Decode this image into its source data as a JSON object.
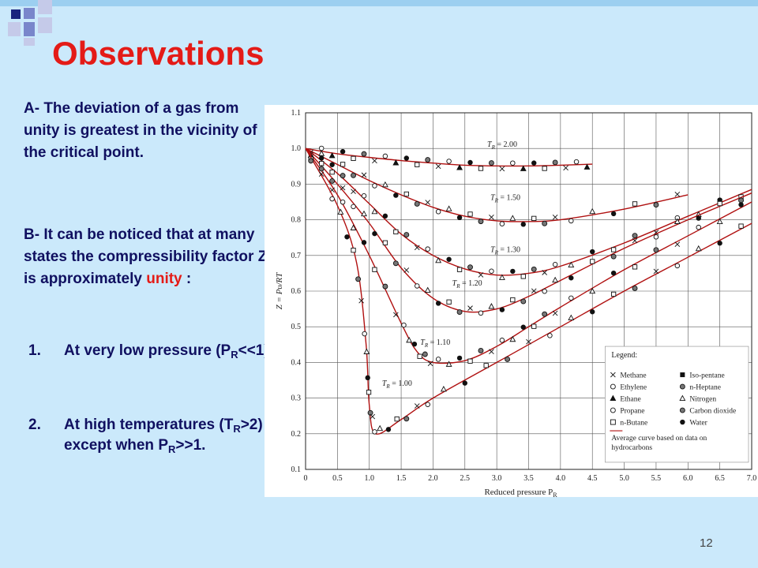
{
  "slide": {
    "title": "Observations",
    "para_a": "A- The deviation of a gas from unity is greatest in the vicinity of the critical point.",
    "para_b_prefix": "B- It can be noticed that at many states the compressibility factor Z is approximately",
    "para_b_highlight": "unity",
    "para_b_suffix": ":",
    "list": [
      {
        "num": "1.",
        "text_a": "At very low pressure (P",
        "sub": "R",
        "text_b": "<<1),"
      },
      {
        "num": "2.",
        "text_a": "At high temperatures (T",
        "sub": "R",
        "text_b": ">2) except when P",
        "sub2": "R",
        "text_c": ">>1."
      }
    ],
    "page_number": "12",
    "colors": {
      "title": "#e41b17",
      "text": "#101060",
      "background": "#cbe9fb",
      "curve": "#b01010"
    }
  },
  "chart_data": {
    "type": "scatter",
    "xlabel": "Reduced pressure P",
    "xlabel_sub": "R",
    "ylabel": "Z = Pυ/RT",
    "xlim": [
      0,
      7.0
    ],
    "ylim": [
      0.1,
      1.1
    ],
    "x_ticks": [
      "0",
      "0.5",
      "1.0",
      "1.5",
      "2.0",
      "2.5",
      "3.0",
      "3.5",
      "4.0",
      "4.5",
      "5.0",
      "5.5",
      "6.0",
      "6.5",
      "7.0"
    ],
    "y_ticks": [
      "0.1",
      "0.2",
      "0.3",
      "0.4",
      "0.5",
      "0.6",
      "0.7",
      "0.8",
      "0.9",
      "1.0",
      "1.1"
    ],
    "grid": true,
    "legend_title": "Legend:",
    "legend_position": "bottom-right",
    "legend": [
      "Methane",
      "Iso-pentane",
      "Ethylene",
      "n-Heptane",
      "Ethane",
      "Nitrogen",
      "Propane",
      "Carbon dioxide",
      "n-Butane",
      "Water"
    ],
    "legend_note": "Average curve based on data on hydrocarbons",
    "curves": [
      {
        "label": "T_R = 2.00",
        "label_text": "= 2.00",
        "points": [
          [
            0,
            1.0
          ],
          [
            0.5,
            0.985
          ],
          [
            1.0,
            0.975
          ],
          [
            1.5,
            0.966
          ],
          [
            2.0,
            0.959
          ],
          [
            2.5,
            0.953
          ],
          [
            3.0,
            0.951
          ],
          [
            3.5,
            0.951
          ],
          [
            4.0,
            0.953
          ],
          [
            4.5,
            0.956
          ]
        ]
      },
      {
        "label": "T_R = 1.50",
        "label_text": "= 1.50",
        "points": [
          [
            0,
            1.0
          ],
          [
            0.5,
            0.955
          ],
          [
            1.0,
            0.91
          ],
          [
            1.5,
            0.87
          ],
          [
            2.0,
            0.835
          ],
          [
            2.5,
            0.81
          ],
          [
            3.0,
            0.797
          ],
          [
            3.5,
            0.795
          ],
          [
            4.0,
            0.8
          ],
          [
            5.0,
            0.83
          ],
          [
            6.0,
            0.87
          ]
        ]
      },
      {
        "label": "T_R = 1.30",
        "label_text": "= 1.30",
        "points": [
          [
            0,
            1.0
          ],
          [
            0.5,
            0.93
          ],
          [
            1.0,
            0.845
          ],
          [
            1.5,
            0.76
          ],
          [
            2.0,
            0.7
          ],
          [
            2.5,
            0.662
          ],
          [
            3.0,
            0.645
          ],
          [
            3.5,
            0.65
          ],
          [
            4.0,
            0.67
          ],
          [
            5.0,
            0.735
          ],
          [
            6.0,
            0.81
          ],
          [
            7.0,
            0.885
          ]
        ]
      },
      {
        "label": "T_R = 1.20",
        "label_text": "= 1.20",
        "points": [
          [
            0,
            1.0
          ],
          [
            0.5,
            0.9
          ],
          [
            1.0,
            0.79
          ],
          [
            1.5,
            0.665
          ],
          [
            2.0,
            0.58
          ],
          [
            2.5,
            0.543
          ],
          [
            3.0,
            0.55
          ],
          [
            3.5,
            0.585
          ],
          [
            4.0,
            0.63
          ],
          [
            5.0,
            0.72
          ],
          [
            6.0,
            0.8
          ],
          [
            7.0,
            0.875
          ]
        ]
      },
      {
        "label": "T_R = 1.10",
        "label_text": "= 1.10",
        "points": [
          [
            0,
            1.0
          ],
          [
            0.5,
            0.87
          ],
          [
            1.0,
            0.7
          ],
          [
            1.5,
            0.51
          ],
          [
            1.75,
            0.43
          ],
          [
            2.0,
            0.4
          ],
          [
            2.5,
            0.405
          ],
          [
            3.0,
            0.445
          ],
          [
            3.5,
            0.5
          ],
          [
            4.0,
            0.555
          ],
          [
            5.0,
            0.66
          ],
          [
            6.0,
            0.755
          ],
          [
            7.0,
            0.85
          ]
        ]
      },
      {
        "label": "T_R = 1.00",
        "label_text": "= 1.00",
        "points": [
          [
            0,
            1.0
          ],
          [
            0.5,
            0.84
          ],
          [
            0.8,
            0.68
          ],
          [
            0.95,
            0.45
          ],
          [
            1.0,
            0.28
          ],
          [
            1.1,
            0.2
          ],
          [
            1.5,
            0.24
          ],
          [
            2.0,
            0.3
          ],
          [
            3.0,
            0.4
          ],
          [
            4.0,
            0.5
          ],
          [
            5.0,
            0.6
          ],
          [
            6.0,
            0.695
          ],
          [
            7.0,
            0.79
          ]
        ]
      }
    ]
  }
}
